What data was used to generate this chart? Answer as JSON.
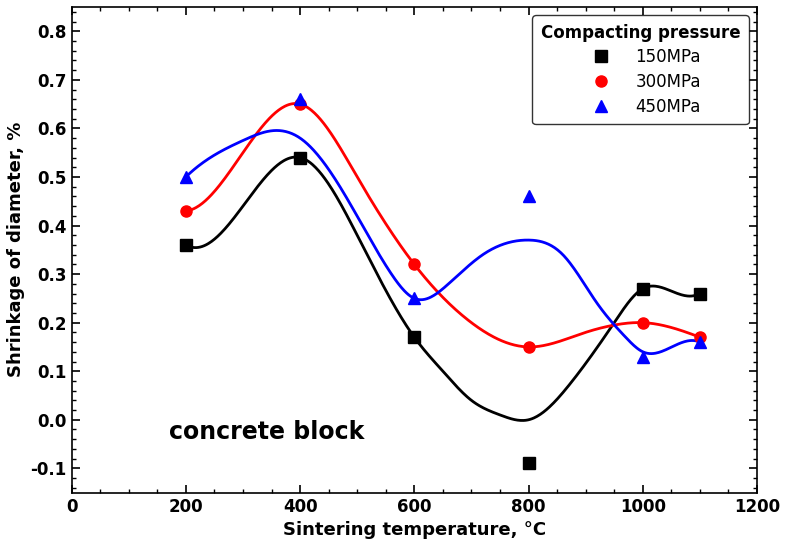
{
  "title": "",
  "xlabel": "Sintering temperature, °C",
  "ylabel": "Shrinkage of diameter, %",
  "annotation": "concrete block",
  "legend_title": "Compacting pressure",
  "xlim": [
    0,
    1200
  ],
  "ylim": [
    -0.15,
    0.85
  ],
  "xticks": [
    0,
    200,
    400,
    600,
    800,
    1000,
    1200
  ],
  "yticks": [
    -0.1,
    0.0,
    0.1,
    0.2,
    0.3,
    0.4,
    0.5,
    0.6,
    0.7,
    0.8
  ],
  "series": [
    {
      "label": "150MPa",
      "color": "black",
      "marker": "s",
      "x_data": [
        200,
        400,
        600,
        800,
        1000,
        1100
      ],
      "y_data": [
        0.36,
        0.54,
        0.17,
        -0.09,
        0.27,
        0.26
      ],
      "smooth_x": [
        200,
        300,
        400,
        500,
        600,
        650,
        700,
        750,
        800,
        870,
        950,
        1000,
        1050,
        1100
      ],
      "smooth_y": [
        0.36,
        0.44,
        0.54,
        0.38,
        0.17,
        0.1,
        0.04,
        0.01,
        0.0,
        0.07,
        0.2,
        0.27,
        0.265,
        0.26
      ]
    },
    {
      "label": "300MPa",
      "color": "red",
      "marker": "o",
      "x_data": [
        200,
        400,
        600,
        800,
        1000,
        1100
      ],
      "y_data": [
        0.43,
        0.65,
        0.32,
        0.15,
        0.2,
        0.17
      ],
      "smooth_x": [
        200,
        300,
        400,
        500,
        600,
        700,
        800,
        900,
        950,
        1000,
        1050,
        1100
      ],
      "smooth_y": [
        0.43,
        0.55,
        0.65,
        0.5,
        0.32,
        0.2,
        0.15,
        0.18,
        0.195,
        0.2,
        0.19,
        0.17
      ]
    },
    {
      "label": "450MPa",
      "color": "blue",
      "marker": "^",
      "x_data": [
        200,
        400,
        600,
        800,
        1000,
        1100
      ],
      "y_data": [
        0.5,
        0.66,
        0.25,
        0.46,
        0.13,
        0.16
      ],
      "smooth_x": [
        200,
        250,
        300,
        350,
        400,
        480,
        560,
        600,
        660,
        720,
        800,
        860,
        920,
        970,
        1000,
        1060,
        1100
      ],
      "smooth_y": [
        0.5,
        0.545,
        0.575,
        0.595,
        0.58,
        0.46,
        0.3,
        0.25,
        0.28,
        0.34,
        0.37,
        0.34,
        0.24,
        0.17,
        0.14,
        0.155,
        0.16
      ]
    }
  ],
  "background_color": "#ffffff",
  "markersize": 8,
  "linewidth": 2.0
}
